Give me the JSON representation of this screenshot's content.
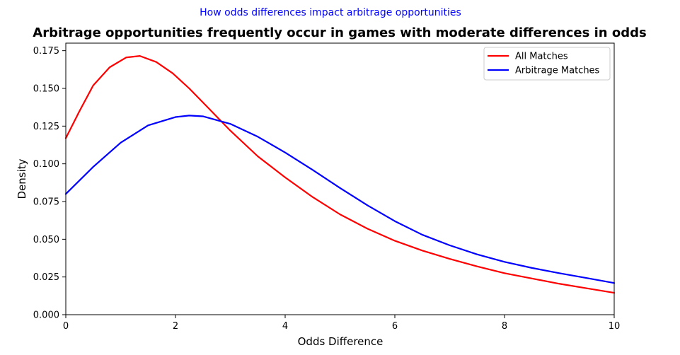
{
  "chart_data": {
    "type": "line",
    "suptitle": "How odds differences impact arbitrage opportunities",
    "suptitle_color": "#0000ff",
    "title": "Arbitrage opportunities frequently occur in games with moderate differences in odds",
    "xlabel": "Odds Difference",
    "ylabel": "Density",
    "xlim": [
      0,
      10
    ],
    "ylim": [
      0,
      0.18
    ],
    "xticks": [
      0,
      2,
      4,
      6,
      8,
      10
    ],
    "xtick_labels": [
      "0",
      "2",
      "4",
      "6",
      "8",
      "10"
    ],
    "yticks": [
      0.0,
      0.025,
      0.05,
      0.075,
      0.1,
      0.125,
      0.15,
      0.175
    ],
    "ytick_labels": [
      "0.000",
      "0.025",
      "0.050",
      "0.075",
      "0.100",
      "0.125",
      "0.150",
      "0.175"
    ],
    "grid": false,
    "legend_position": "top-right",
    "series": [
      {
        "name": "All Matches",
        "color": "#ff0000",
        "x": [
          0,
          0.25,
          0.5,
          0.8,
          1.1,
          1.35,
          1.65,
          1.95,
          2.25,
          2.6,
          3.0,
          3.5,
          4.0,
          4.5,
          5.0,
          5.5,
          6.0,
          6.5,
          7.0,
          7.5,
          8.0,
          8.5,
          9.0,
          9.5,
          10.0
        ],
        "y": [
          0.117,
          0.135,
          0.152,
          0.164,
          0.1705,
          0.1715,
          0.1675,
          0.16,
          0.15,
          0.137,
          0.122,
          0.105,
          0.091,
          0.078,
          0.0665,
          0.057,
          0.049,
          0.0425,
          0.037,
          0.032,
          0.0275,
          0.024,
          0.0205,
          0.0175,
          0.0145
        ]
      },
      {
        "name": "Arbitrage Matches",
        "color": "#0000ff",
        "x": [
          0,
          0.5,
          1.0,
          1.5,
          2.0,
          2.25,
          2.5,
          3.0,
          3.5,
          4.0,
          4.5,
          5.0,
          5.5,
          6.0,
          6.5,
          7.0,
          7.5,
          8.0,
          8.5,
          9.0,
          9.5,
          10.0
        ],
        "y": [
          0.08,
          0.098,
          0.114,
          0.1255,
          0.131,
          0.132,
          0.1315,
          0.1265,
          0.118,
          0.1075,
          0.096,
          0.084,
          0.0725,
          0.062,
          0.053,
          0.046,
          0.04,
          0.035,
          0.031,
          0.0275,
          0.0243,
          0.021
        ]
      }
    ]
  }
}
